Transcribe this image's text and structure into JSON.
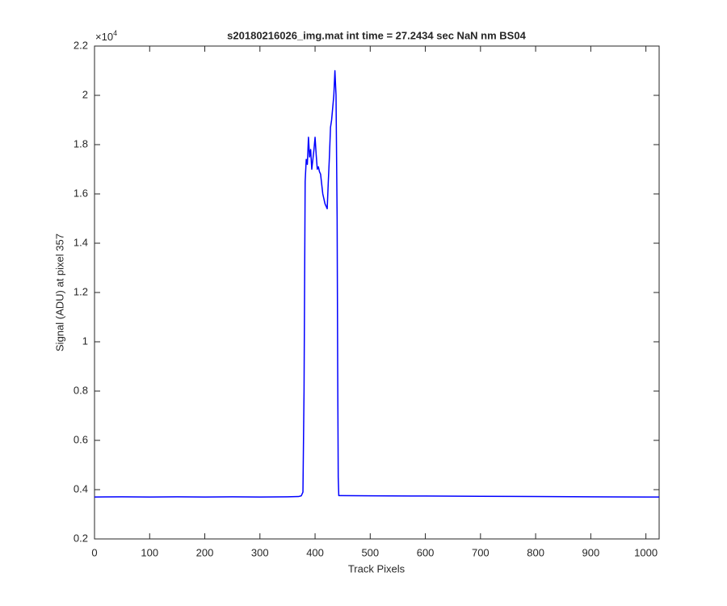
{
  "chart_data": {
    "type": "line",
    "title": "s20180216026_img.mat int time = 27.2434 sec  NaN nm BS04",
    "x_label": "Track Pixels",
    "y_label": "Signal (ADU) at pixel 357",
    "y_multiplier": {
      "base": "×10",
      "exponent": "4"
    },
    "x": [
      0,
      50,
      100,
      150,
      200,
      250,
      300,
      350,
      370,
      375,
      378,
      380,
      382,
      384,
      386,
      388,
      390,
      392,
      394,
      396,
      398,
      400,
      402,
      404,
      406,
      408,
      410,
      412,
      414,
      416,
      418,
      420,
      422,
      424,
      426,
      428,
      430,
      432,
      434,
      436,
      438,
      440,
      441,
      442,
      443,
      446,
      500,
      600,
      700,
      800,
      900,
      1000,
      1024
    ],
    "series": [
      {
        "name": "signal",
        "color": "#0000ff",
        "values": [
          3700,
          3710,
          3700,
          3710,
          3700,
          3710,
          3700,
          3710,
          3720,
          3750,
          3900,
          8000,
          16500,
          17400,
          17200,
          18300,
          17500,
          17800,
          17000,
          17400,
          17800,
          18300,
          17600,
          17000,
          17100,
          16900,
          16800,
          16400,
          16000,
          15800,
          15600,
          15500,
          15400,
          16500,
          17500,
          18700,
          19000,
          19500,
          20000,
          21000,
          20000,
          15000,
          9000,
          4500,
          3760,
          3760,
          3750,
          3740,
          3730,
          3720,
          3710,
          3700,
          3700
        ]
      }
    ],
    "xlim": [
      0,
      1024
    ],
    "xticks": [
      0,
      100,
      200,
      300,
      400,
      500,
      600,
      700,
      800,
      900,
      1000
    ],
    "ylim": [
      2000,
      22000
    ],
    "yticks": [
      {
        "value": 2000,
        "label": "0.2"
      },
      {
        "value": 4000,
        "label": "0.4"
      },
      {
        "value": 6000,
        "label": "0.6"
      },
      {
        "value": 8000,
        "label": "0.8"
      },
      {
        "value": 10000,
        "label": "1"
      },
      {
        "value": 12000,
        "label": "1.2"
      },
      {
        "value": 14000,
        "label": "1.4"
      },
      {
        "value": 16000,
        "label": "1.6"
      },
      {
        "value": 18000,
        "label": "1.8"
      },
      {
        "value": 20000,
        "label": "2"
      },
      {
        "value": 22000,
        "label": "2.2"
      }
    ],
    "grid": false
  }
}
